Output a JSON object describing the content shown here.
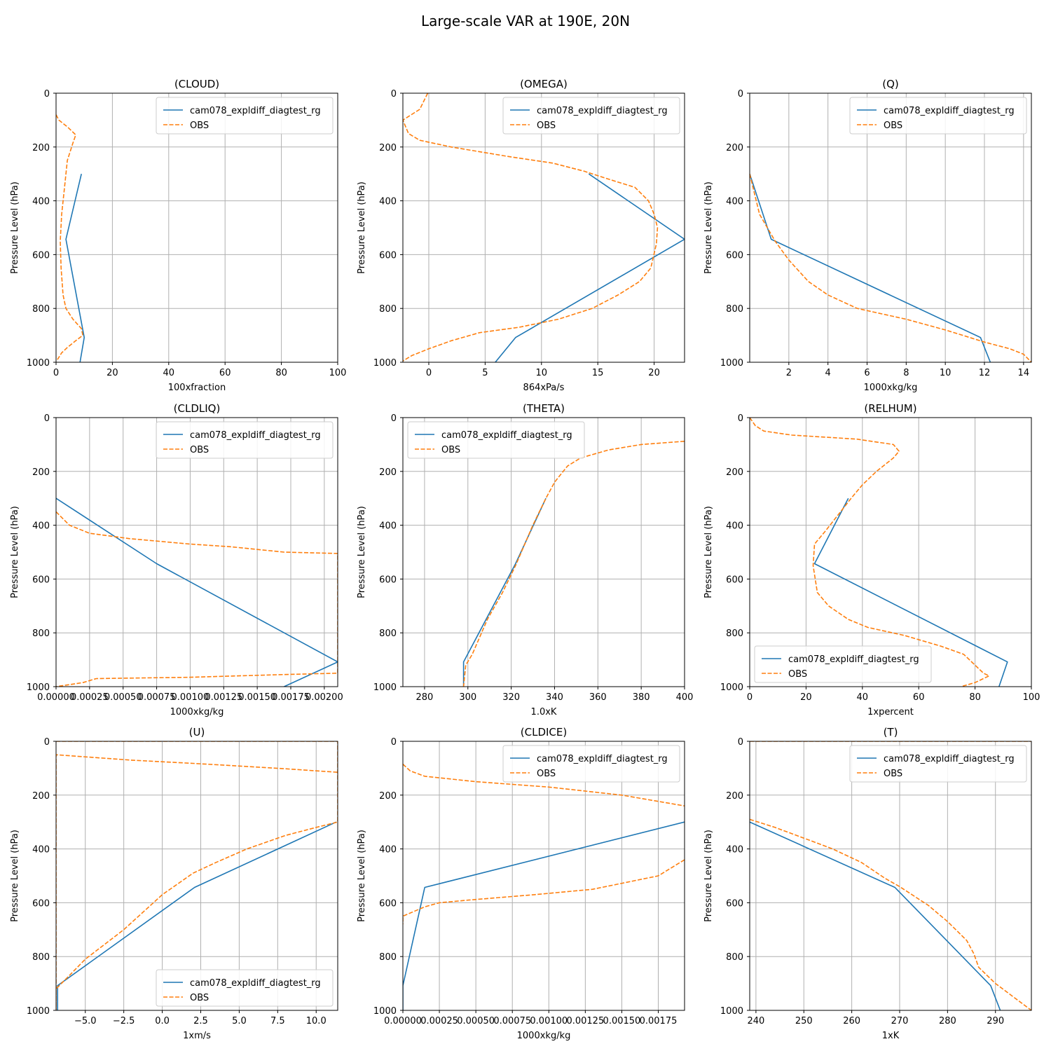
{
  "figure": {
    "title": "Large-scale VAR at 190E, 20N"
  },
  "colors": {
    "model": "#1f77b4",
    "obs": "#ff7f0e",
    "grid": "#b0b0b0",
    "axis": "#000000"
  },
  "chart_data": [
    {
      "type": "line",
      "title": "(CLOUD)",
      "xlabel": "100xfraction",
      "ylabel": "Pressure Level (hPa)",
      "xlim": [
        0,
        100
      ],
      "ylim": [
        1000,
        0
      ],
      "y_inverted": true,
      "xticks": [
        0,
        20,
        40,
        60,
        80,
        100
      ],
      "xtick_labels": [
        "0",
        "20",
        "40",
        "60",
        "80",
        "100"
      ],
      "yticks": [
        0,
        200,
        400,
        600,
        800,
        1000
      ],
      "ytick_labels": [
        "0",
        "200",
        "400",
        "600",
        "800",
        "1000"
      ],
      "legend_loc": "upper-right",
      "grid": true,
      "series": [
        {
          "name": "cam078_expldiff_diagtest_rg",
          "style": "solid",
          "x": [
            9,
            3.5,
            10,
            8.5
          ],
          "y": [
            300,
            543,
            908,
            1000
          ]
        },
        {
          "name": "OBS",
          "style": "dashed",
          "x": [
            0,
            1,
            4,
            7,
            6,
            4,
            3,
            2,
            1.5,
            1.8,
            2.5,
            3.5,
            6,
            9,
            9.5,
            7,
            4,
            2,
            0.5
          ],
          "y": [
            80,
            100,
            125,
            155,
            185,
            250,
            350,
            450,
            550,
            650,
            750,
            800,
            840,
            875,
            900,
            920,
            945,
            965,
            990
          ]
        }
      ]
    },
    {
      "type": "line",
      "title": "(OMEGA)",
      "xlabel": "864xPa/s",
      "ylabel": "Pressure Level (hPa)",
      "xlim": [
        -2.3,
        22.7
      ],
      "ylim": [
        1000,
        0
      ],
      "y_inverted": true,
      "xticks": [
        0,
        5,
        10,
        15,
        20
      ],
      "xtick_labels": [
        "0",
        "5",
        "10",
        "15",
        "20"
      ],
      "yticks": [
        0,
        200,
        400,
        600,
        800,
        1000
      ],
      "ytick_labels": [
        "0",
        "200",
        "400",
        "600",
        "800",
        "1000"
      ],
      "legend_loc": "upper-right",
      "grid": true,
      "series": [
        {
          "name": "cam078_expldiff_diagtest_rg",
          "style": "solid",
          "x": [
            14.2,
            22.7,
            7.7,
            5.9
          ],
          "y": [
            300,
            543,
            908,
            1000
          ]
        },
        {
          "name": "OBS",
          "style": "dashed",
          "x": [
            -0.1,
            -0.8,
            -2.3,
            -1.8,
            -0.8,
            2,
            7,
            11,
            13.8,
            16,
            18.3,
            19.5,
            20,
            20.3,
            20.2,
            19.7,
            18.7,
            16.8,
            14.5,
            11.5,
            8,
            4.5,
            2,
            0,
            -1.5,
            -2.3
          ],
          "y": [
            0,
            60,
            100,
            150,
            175,
            200,
            235,
            260,
            290,
            320,
            350,
            400,
            450,
            500,
            560,
            650,
            700,
            750,
            800,
            840,
            870,
            890,
            920,
            950,
            975,
            995
          ]
        }
      ]
    },
    {
      "type": "line",
      "title": "(Q)",
      "xlabel": "1000xkg/kg",
      "ylabel": "Pressure Level (hPa)",
      "xlim": [
        0,
        14.4
      ],
      "ylim": [
        1000,
        0
      ],
      "y_inverted": true,
      "xticks": [
        2,
        4,
        6,
        8,
        10,
        12,
        14
      ],
      "xtick_labels": [
        "2",
        "4",
        "6",
        "8",
        "10",
        "12",
        "14"
      ],
      "yticks": [
        0,
        200,
        400,
        600,
        800,
        1000
      ],
      "ytick_labels": [
        "0",
        "200",
        "400",
        "600",
        "800",
        "1000"
      ],
      "legend_loc": "upper-right",
      "grid": true,
      "series": [
        {
          "name": "cam078_expldiff_diagtest_rg",
          "style": "solid",
          "x": [
            0,
            1.1,
            11.8,
            12.3
          ],
          "y": [
            300,
            543,
            908,
            1000
          ]
        },
        {
          "name": "OBS",
          "style": "dashed",
          "x": [
            0,
            0.5,
            1.3,
            2,
            3,
            4,
            5.5,
            8,
            10,
            12,
            13.3,
            14,
            14.4
          ],
          "y": [
            300,
            450,
            550,
            620,
            700,
            750,
            800,
            840,
            880,
            925,
            950,
            970,
            1000
          ]
        }
      ]
    },
    {
      "type": "line",
      "title": "(CLDLIQ)",
      "xlabel": "1000xkg/kg",
      "ylabel": "Pressure Level (hPa)",
      "xlim": [
        0,
        0.0021
      ],
      "ylim": [
        1000,
        0
      ],
      "y_inverted": true,
      "xticks": [
        0,
        0.00025,
        0.0005,
        0.00075,
        0.001,
        0.00125,
        0.0015,
        0.00175,
        0.002
      ],
      "xtick_labels": [
        "0.00000",
        "0.00025",
        "0.00050",
        "0.00075",
        "0.00100",
        "0.00125",
        "0.00150",
        "0.00175",
        "0.00200"
      ],
      "yticks": [
        0,
        200,
        400,
        600,
        800,
        1000
      ],
      "ytick_labels": [
        "0",
        "200",
        "400",
        "600",
        "800",
        "1000"
      ],
      "legend_loc": "upper-right",
      "grid": true,
      "series": [
        {
          "name": "cam078_expldiff_diagtest_rg",
          "style": "solid",
          "x": [
            0,
            0.00075,
            0.0021,
            0.0017
          ],
          "y": [
            300,
            543,
            908,
            1000
          ]
        },
        {
          "name": "OBS",
          "style": "dashed",
          "x": [
            0,
            0.0001,
            0.00025,
            0.00055,
            0.001,
            0.0013,
            0.0017,
            0.0021,
            0.0021,
            0.0017,
            0.001,
            0.0003,
            0.0002,
            0
          ],
          "y": [
            350,
            400,
            430,
            450,
            470,
            480,
            500,
            505,
            950,
            955,
            965,
            970,
            985,
            1000
          ]
        }
      ]
    },
    {
      "type": "line",
      "title": "(THETA)",
      "xlabel": "1.0xK",
      "ylabel": "Pressure Level (hPa)",
      "xlim": [
        270,
        400
      ],
      "ylim": [
        1000,
        0
      ],
      "y_inverted": true,
      "xticks": [
        280,
        300,
        320,
        340,
        360,
        380,
        400
      ],
      "xtick_labels": [
        "280",
        "300",
        "320",
        "340",
        "360",
        "380",
        "400"
      ],
      "yticks": [
        0,
        200,
        400,
        600,
        800,
        1000
      ],
      "ytick_labels": [
        "0",
        "200",
        "400",
        "600",
        "800",
        "1000"
      ],
      "legend_loc": "upper-left",
      "grid": true,
      "series": [
        {
          "name": "cam078_expldiff_diagtest_rg",
          "style": "solid",
          "x": [
            336,
            322,
            298,
            298
          ],
          "y": [
            300,
            543,
            908,
            1000
          ]
        },
        {
          "name": "OBS",
          "style": "dashed",
          "x": [
            400,
            380,
            365,
            352,
            346,
            343,
            340,
            336,
            330,
            322,
            316,
            309,
            302,
            299,
            298
          ],
          "y": [
            88,
            100,
            120,
            150,
            180,
            210,
            240,
            300,
            400,
            550,
            650,
            750,
            880,
            920,
            1000
          ]
        }
      ]
    },
    {
      "type": "line",
      "title": "(RELHUM)",
      "xlabel": "1xpercent",
      "ylabel": "Pressure Level (hPa)",
      "xlim": [
        0,
        100
      ],
      "ylim": [
        1000,
        0
      ],
      "y_inverted": true,
      "xticks": [
        0,
        20,
        40,
        60,
        80,
        100
      ],
      "xtick_labels": [
        "0",
        "20",
        "40",
        "60",
        "80",
        "100"
      ],
      "yticks": [
        0,
        200,
        400,
        600,
        800,
        1000
      ],
      "ytick_labels": [
        "0",
        "200",
        "400",
        "600",
        "800",
        "1000"
      ],
      "legend_loc": "lower-left",
      "grid": true,
      "series": [
        {
          "name": "cam078_expldiff_diagtest_rg",
          "style": "solid",
          "x": [
            35,
            23,
            91.5,
            88.5
          ],
          "y": [
            300,
            543,
            908,
            1000
          ]
        },
        {
          "name": "OBS",
          "style": "dashed",
          "x": [
            0,
            2,
            5,
            15,
            38,
            51,
            53,
            51,
            45,
            40,
            36,
            30,
            27,
            23,
            22.5,
            24,
            28,
            35,
            42,
            55,
            68,
            76,
            80,
            83,
            85,
            80,
            75
          ],
          "y": [
            0,
            30,
            50,
            65,
            80,
            100,
            125,
            150,
            200,
            250,
            300,
            380,
            420,
            470,
            550,
            650,
            700,
            750,
            780,
            810,
            850,
            880,
            920,
            950,
            960,
            985,
            1000
          ]
        }
      ]
    },
    {
      "type": "line",
      "title": "(U)",
      "xlabel": "1xm/s",
      "ylabel": "Pressure Level (hPa)",
      "xlim": [
        -6.9,
        11.4
      ],
      "ylim": [
        1000,
        0
      ],
      "y_inverted": true,
      "xticks": [
        -5,
        -2.5,
        0,
        2.5,
        5,
        7.5,
        10
      ],
      "xtick_labels": [
        "−5.0",
        "−2.5",
        "0.0",
        "2.5",
        "5.0",
        "7.5",
        "10.0"
      ],
      "yticks": [
        0,
        200,
        400,
        600,
        800,
        1000
      ],
      "ytick_labels": [
        "0",
        "200",
        "400",
        "600",
        "800",
        "1000"
      ],
      "legend_loc": "lower-right",
      "grid": true,
      "series": [
        {
          "name": "cam078_expldiff_diagtest_rg",
          "style": "solid",
          "x": [
            11.3,
            2.1,
            -6.8,
            -6.8
          ],
          "y": [
            300,
            543,
            908,
            1000
          ]
        },
        {
          "name": "OBS",
          "style": "dashed",
          "x": [
            -6.9,
            4,
            11.4,
            11.4,
            10,
            8,
            5.5,
            3.5,
            2,
            0,
            -2.5,
            -5,
            -6.2,
            -6.9,
            -6.9,
            -6.9,
            -2,
            2,
            5,
            8,
            11.4
          ],
          "y": [
            0,
            0,
            0,
            300,
            320,
            350,
            400,
            450,
            490,
            570,
            700,
            810,
            880,
            920,
            1000,
            50,
            70,
            82,
            92,
            102,
            115
          ]
        }
      ]
    },
    {
      "type": "line",
      "title": "(CLDICE)",
      "xlabel": "1000xkg/kg",
      "ylabel": "Pressure Level (hPa)",
      "xlim": [
        0,
        0.00193
      ],
      "ylim": [
        1000,
        0
      ],
      "y_inverted": true,
      "xticks": [
        0,
        0.00025,
        0.0005,
        0.00075,
        0.001,
        0.00125,
        0.0015,
        0.00175
      ],
      "xtick_labels": [
        "0.00000",
        "0.00025",
        "0.00050",
        "0.00075",
        "0.00100",
        "0.00125",
        "0.00150",
        "0.00175"
      ],
      "yticks": [
        0,
        200,
        400,
        600,
        800,
        1000
      ],
      "ytick_labels": [
        "0",
        "200",
        "400",
        "600",
        "800",
        "1000"
      ],
      "legend_loc": "upper-right",
      "grid": true,
      "series": [
        {
          "name": "cam078_expldiff_diagtest_rg",
          "style": "solid",
          "x": [
            0.00193,
            0.00015,
            0,
            0
          ],
          "y": [
            300,
            543,
            908,
            1000
          ]
        },
        {
          "name": "OBS",
          "style": "dashed",
          "x": [
            0,
            5e-05,
            0.00015,
            0.0005,
            0.001,
            0.0015,
            0.00193
          ],
          "y": [
            85,
            110,
            130,
            150,
            170,
            200,
            240
          ]
        },
        {
          "name": "OBS",
          "style": "dashed",
          "x": [
            0.00193,
            0.00175,
            0.0013,
            0.0009,
            0.00045,
            0.00025,
            0.00015,
            0,
            0
          ],
          "y": [
            440,
            500,
            550,
            570,
            590,
            600,
            615,
            650,
            680
          ]
        }
      ]
    },
    {
      "type": "line",
      "title": "(T)",
      "xlabel": "1xK",
      "ylabel": "Pressure Level (hPa)",
      "xlim": [
        238.7,
        297.5
      ],
      "ylim": [
        1000,
        0
      ],
      "y_inverted": true,
      "xticks": [
        240,
        250,
        260,
        270,
        280,
        290
      ],
      "xtick_labels": [
        "240",
        "250",
        "260",
        "270",
        "280",
        "290"
      ],
      "yticks": [
        0,
        200,
        400,
        600,
        800,
        1000
      ],
      "ytick_labels": [
        "0",
        "200",
        "400",
        "600",
        "800",
        "1000"
      ],
      "legend_loc": "upper-right",
      "grid": true,
      "series": [
        {
          "name": "cam078_expldiff_diagtest_rg",
          "style": "solid",
          "x": [
            238.7,
            269,
            289,
            291
          ],
          "y": [
            300,
            543,
            908,
            1000
          ]
        },
        {
          "name": "OBS",
          "style": "dashed",
          "x": [
            238.7,
            241,
            254,
            261,
            266,
            270,
            275,
            280,
            284,
            285.5,
            287,
            290,
            293,
            295,
            297.5
          ],
          "y": [
            0,
            0,
            0,
            0,
            0,
            0,
            0,
            0,
            0,
            0,
            0,
            0,
            0,
            0,
            0
          ]
        },
        {
          "name": "OBS",
          "style": "dashed",
          "x": [
            238.7,
            244,
            250,
            256,
            262,
            267,
            270,
            276,
            280,
            284,
            285.5,
            286.5,
            290,
            293,
            297.5
          ],
          "y": [
            290,
            320,
            360,
            400,
            450,
            510,
            540,
            610,
            670,
            740,
            790,
            840,
            900,
            940,
            1000
          ]
        }
      ]
    }
  ]
}
